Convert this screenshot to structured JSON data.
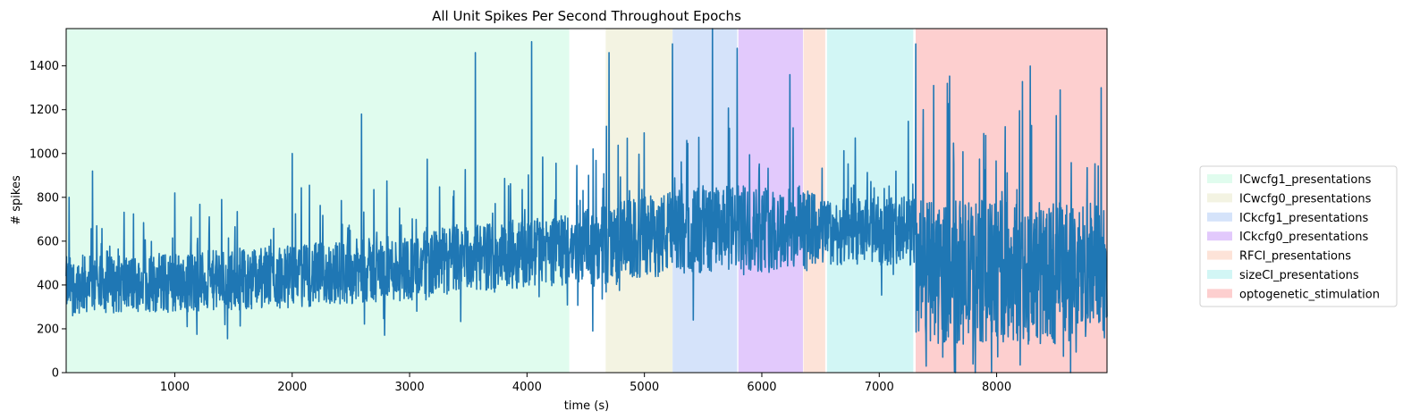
{
  "chart_data": {
    "type": "line",
    "title": "All Unit Spikes Per Second Throughout Epochs",
    "xlabel": "time (s)",
    "ylabel": "# spikes",
    "xlim": [
      75,
      8940
    ],
    "ylim": [
      0,
      1570
    ],
    "xticks": [
      1000,
      2000,
      3000,
      4000,
      5000,
      6000,
      7000,
      8000
    ],
    "yticks": [
      0,
      200,
      400,
      600,
      800,
      1000,
      1200,
      1400
    ],
    "grid": false,
    "legend_position": "outside-right",
    "line_color": "#1f77b4",
    "epochs": [
      {
        "name": "ICwcfg1_presentations",
        "start": 75,
        "end": 4360,
        "color": "#e0fcee"
      },
      {
        "name": "ICwcfg0_presentations",
        "start": 4670,
        "end": 5240,
        "color": "#f3f3e2"
      },
      {
        "name": "ICkcfg1_presentations",
        "start": 5240,
        "end": 5790,
        "color": "#d5e3fa"
      },
      {
        "name": "ICkcfg0_presentations",
        "start": 5800,
        "end": 6350,
        "color": "#e2c9fc"
      },
      {
        "name": "RFCI_presentations",
        "start": 6355,
        "end": 6540,
        "color": "#fde3d8"
      },
      {
        "name": "sizeCI_presentations",
        "start": 6555,
        "end": 7290,
        "color": "#d2f6f5"
      },
      {
        "name": "optogenetic_stimulation",
        "start": 7310,
        "end": 8940,
        "color": "#fdcfcf"
      }
    ],
    "series": [
      {
        "x_start": 75,
        "x_end": 8940,
        "trend": [
          [
            75,
            400
          ],
          [
            1000,
            410
          ],
          [
            2000,
            440
          ],
          [
            3000,
            480
          ],
          [
            3400,
            520
          ],
          [
            4360,
            560
          ],
          [
            4670,
            580
          ],
          [
            5240,
            640
          ],
          [
            5790,
            660
          ],
          [
            6350,
            650
          ],
          [
            6540,
            640
          ],
          [
            7290,
            650
          ],
          [
            7310,
            460
          ],
          [
            8940,
            460
          ]
        ],
        "spread": [
          [
            75,
            130
          ],
          [
            4360,
            160
          ],
          [
            4670,
            190
          ],
          [
            6350,
            200
          ],
          [
            6540,
            150
          ],
          [
            7290,
            160
          ],
          [
            7310,
            330
          ],
          [
            8940,
            330
          ]
        ],
        "peaks": [
          [
            100,
            800
          ],
          [
            300,
            920
          ],
          [
            1000,
            820
          ],
          [
            2000,
            1000
          ],
          [
            2590,
            1180
          ],
          [
            3560,
            1460
          ],
          [
            4040,
            1510
          ],
          [
            4700,
            1460
          ],
          [
            5240,
            1500
          ],
          [
            5580,
            1570
          ],
          [
            5790,
            1480
          ],
          [
            6240,
            1360
          ],
          [
            7310,
            1500
          ],
          [
            7580,
            1320
          ],
          [
            8540,
            1290
          ],
          [
            8890,
            1300
          ]
        ],
        "troughs": [
          [
            1450,
            155
          ],
          [
            4560,
            190
          ],
          [
            7400,
            30
          ],
          [
            7800,
            40
          ],
          [
            8200,
            35
          ]
        ]
      }
    ]
  }
}
